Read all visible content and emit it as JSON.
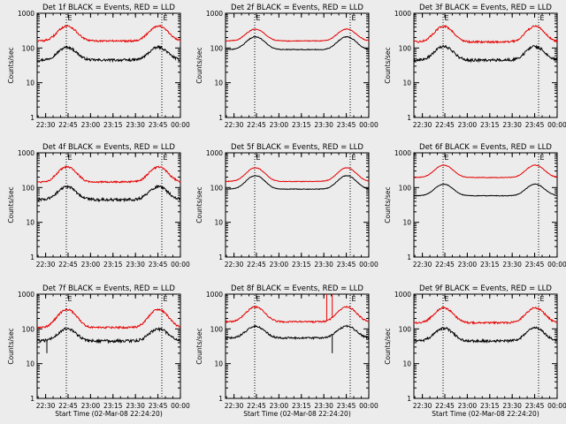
{
  "figure": {
    "background": "#ececec",
    "frame_color": "#000000"
  },
  "common": {
    "ylabel": "Counts/sec",
    "xlabel": "Start Time (02-Mar-08 22:24:20)",
    "x_ticks": [
      "22:30",
      "22:45",
      "23:00",
      "23:15",
      "23:30",
      "23:45",
      "00:00"
    ],
    "y_ticks": [
      "1",
      "10",
      "100",
      "1000"
    ],
    "marker_label": "E",
    "event_color": "#000000",
    "lld_color": "#e60000"
  },
  "chart_data": [
    {
      "type": "line",
      "title": "Det 1f BLACK = Events, RED = LLD",
      "xlabel": "Start Time (02-Mar-08 22:24:20)",
      "ylabel": "Counts/sec",
      "x_range_minutes": [
        0,
        95.7
      ],
      "y_scale": "log",
      "ylim": [
        1,
        1000
      ],
      "markers_at_minutes": [
        19.5,
        83.3
      ],
      "show_xlabel": false,
      "series": [
        {
          "name": "Events",
          "color": "#000000",
          "base": 45,
          "peak": 105,
          "noise": 0.08,
          "spikes": []
        },
        {
          "name": "LLD",
          "color": "#e60000",
          "base": 160,
          "peak": 430,
          "noise": 0.06,
          "spikes": []
        }
      ]
    },
    {
      "type": "line",
      "title": "Det 2f BLACK = Events, RED = LLD",
      "xlabel": "Start Time (02-Mar-08 22:24:20)",
      "ylabel": "Counts/sec",
      "x_range_minutes": [
        0,
        95.7
      ],
      "y_scale": "log",
      "ylim": [
        1,
        1000
      ],
      "markers_at_minutes": [
        19.5,
        83.3
      ],
      "show_xlabel": false,
      "series": [
        {
          "name": "Events",
          "color": "#000000",
          "base": 90,
          "peak": 210,
          "noise": 0.025,
          "spikes": []
        },
        {
          "name": "LLD",
          "color": "#e60000",
          "base": 160,
          "peak": 350,
          "noise": 0.025,
          "spikes": []
        }
      ]
    },
    {
      "type": "line",
      "title": "Det 3f BLACK = Events, RED = LLD",
      "xlabel": "Start Time (02-Mar-08 22:24:20)",
      "ylabel": "Counts/sec",
      "x_range_minutes": [
        0,
        95.7
      ],
      "y_scale": "log",
      "ylim": [
        1,
        1000
      ],
      "markers_at_minutes": [
        19.5,
        83.3
      ],
      "show_xlabel": false,
      "series": [
        {
          "name": "Events",
          "color": "#000000",
          "base": 45,
          "peak": 110,
          "noise": 0.09,
          "spikes": []
        },
        {
          "name": "LLD",
          "color": "#e60000",
          "base": 150,
          "peak": 420,
          "noise": 0.06,
          "spikes": []
        }
      ]
    },
    {
      "type": "line",
      "title": "Det 4f BLACK = Events, RED = LLD",
      "xlabel": "Start Time (02-Mar-08 22:24:20)",
      "ylabel": "Counts/sec",
      "x_range_minutes": [
        0,
        95.7
      ],
      "y_scale": "log",
      "ylim": [
        1,
        1000
      ],
      "markers_at_minutes": [
        19.5,
        83.3
      ],
      "show_xlabel": false,
      "series": [
        {
          "name": "Events",
          "color": "#000000",
          "base": 45,
          "peak": 105,
          "noise": 0.09,
          "spikes": []
        },
        {
          "name": "LLD",
          "color": "#e60000",
          "base": 145,
          "peak": 390,
          "noise": 0.06,
          "spikes": []
        }
      ]
    },
    {
      "type": "line",
      "title": "Det 5f BLACK = Events, RED = LLD",
      "xlabel": "Start Time (02-Mar-08 22:24:20)",
      "ylabel": "Counts/sec",
      "x_range_minutes": [
        0,
        95.7
      ],
      "y_scale": "log",
      "ylim": [
        1,
        1000
      ],
      "markers_at_minutes": [
        19.5,
        83.3
      ],
      "show_xlabel": false,
      "series": [
        {
          "name": "Events",
          "color": "#000000",
          "base": 90,
          "peak": 220,
          "noise": 0.02,
          "spikes": []
        },
        {
          "name": "LLD",
          "color": "#e60000",
          "base": 150,
          "peak": 370,
          "noise": 0.02,
          "spikes": []
        }
      ]
    },
    {
      "type": "line",
      "title": "Det 6f BLACK = Events, RED = LLD",
      "xlabel": "Start Time (02-Mar-08 22:24:20)",
      "ylabel": "Counts/sec",
      "x_range_minutes": [
        0,
        95.7
      ],
      "y_scale": "log",
      "ylim": [
        1,
        1000
      ],
      "markers_at_minutes": [
        19.5,
        83.3
      ],
      "show_xlabel": false,
      "series": [
        {
          "name": "Events",
          "color": "#000000",
          "base": 58,
          "peak": 125,
          "noise": 0.02,
          "spikes": []
        },
        {
          "name": "LLD",
          "color": "#e60000",
          "base": 195,
          "peak": 440,
          "noise": 0.02,
          "spikes": []
        }
      ]
    },
    {
      "type": "line",
      "title": "Det 7f BLACK = Events, RED = LLD",
      "xlabel": "Start Time (02-Mar-08 22:24:20)",
      "ylabel": "Counts/sec",
      "x_range_minutes": [
        0,
        95.7
      ],
      "y_scale": "log",
      "ylim": [
        1,
        1000
      ],
      "markers_at_minutes": [
        19.5,
        83.3
      ],
      "show_xlabel": true,
      "series": [
        {
          "name": "Events",
          "color": "#000000",
          "base": 45,
          "peak": 100,
          "noise": 0.09,
          "spikes": [
            {
              "at": 6.5,
              "value": 20
            }
          ]
        },
        {
          "name": "LLD",
          "color": "#e60000",
          "base": 110,
          "peak": 360,
          "noise": 0.06,
          "spikes": []
        }
      ]
    },
    {
      "type": "line",
      "title": "Det 8f BLACK = Events, RED = LLD",
      "xlabel": "Start Time (02-Mar-08 22:24:20)",
      "ylabel": "Counts/sec",
      "x_range_minutes": [
        0,
        95.7
      ],
      "y_scale": "log",
      "ylim": [
        1,
        1000
      ],
      "markers_at_minutes": [
        19.5,
        83.3
      ],
      "show_xlabel": true,
      "series": [
        {
          "name": "Events",
          "color": "#000000",
          "base": 55,
          "peak": 120,
          "noise": 0.06,
          "spikes": [
            {
              "at": 71.3,
              "value": 20
            }
          ]
        },
        {
          "name": "LLD",
          "color": "#e60000",
          "base": 160,
          "peak": 430,
          "noise": 0.05,
          "spikes": [
            {
              "at": 67.6,
              "value": 1000
            },
            {
              "at": 71.3,
              "value": 1000
            }
          ]
        }
      ]
    },
    {
      "type": "line",
      "title": "Det 9f BLACK = Events, RED = LLD",
      "xlabel": "Start Time (02-Mar-08 22:24:20)",
      "ylabel": "Counts/sec",
      "x_range_minutes": [
        0,
        95.7
      ],
      "y_scale": "log",
      "ylim": [
        1,
        1000
      ],
      "markers_at_minutes": [
        19.5,
        83.3
      ],
      "show_xlabel": true,
      "series": [
        {
          "name": "Events",
          "color": "#000000",
          "base": 45,
          "peak": 105,
          "noise": 0.08,
          "spikes": []
        },
        {
          "name": "LLD",
          "color": "#e60000",
          "base": 150,
          "peak": 400,
          "noise": 0.06,
          "spikes": []
        }
      ]
    }
  ]
}
